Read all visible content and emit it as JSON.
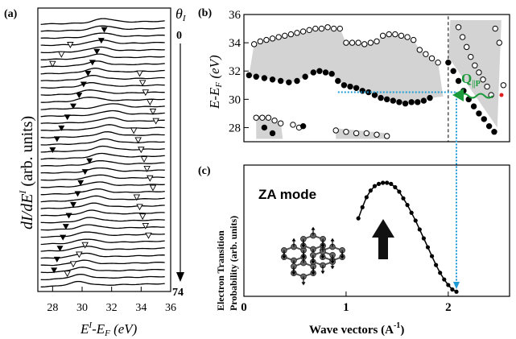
{
  "panels": {
    "a": {
      "label": "(a)",
      "ylabel_main": "dI/dE",
      "ylabel_sup": "I",
      "ylabel_rest": " (arb. units)",
      "xlabel_main": "E",
      "xlabel_sup": "I",
      "xlabel_rest": "-E",
      "xlabel_sub": "F",
      "xlabel_unit": " (eV)",
      "theta_symbol": "θ",
      "theta_sub": "I",
      "theta_start": "0",
      "theta_end": "74",
      "xticks": [
        "28",
        "30",
        "32",
        "34",
        "36"
      ]
    },
    "b": {
      "label": "(b)",
      "ylabel": "E-E",
      "ylabel_sub": "F",
      "ylabel_unit": " (eV)",
      "yticks": [
        "28",
        "30",
        "32",
        "34",
        "36"
      ],
      "q_main": "Q",
      "q_sub": "||P"
    },
    "c": {
      "label": "(c)",
      "title": "ZA mode",
      "ylabel_line1": "Electron Transition",
      "ylabel_line2": "Probability   (arb. units)",
      "xlabel": "Wave vectors (A",
      "xlabel_sup": "-1",
      "xlabel_close": ")",
      "xticks": [
        "0",
        "1",
        "2"
      ]
    }
  },
  "chart_data": [
    {
      "type": "line",
      "panel": "a",
      "description_of_axes": "stacked spectra vs energy",
      "xlim": [
        27,
        36
      ],
      "curves": 38,
      "offset_direction": "down with increasing angle",
      "filled_marker_energy": [
        31.5,
        31.3,
        31.0,
        30.7,
        30.4,
        30.1,
        29.8,
        29.4,
        29.0,
        28.6,
        28.3,
        28.0,
        30.5,
        30.2,
        29.9,
        29.7,
        29.4,
        29.1,
        28.9,
        28.7,
        28.5,
        28.3,
        28.1
      ],
      "open_marker_energy": [
        29.2,
        28.6,
        28.0,
        33.9,
        34.1,
        34.3,
        34.6,
        34.8,
        35.0,
        33.5,
        33.8,
        34.0,
        34.2,
        34.4,
        34.6,
        34.8,
        33.7,
        33.9,
        34.1,
        34.3,
        34.5,
        30.2,
        29.8,
        29.4,
        29.0
      ]
    },
    {
      "type": "scatter",
      "panel": "b",
      "xlim": [
        0,
        2.6
      ],
      "ylim": [
        27,
        36
      ],
      "open_upper": {
        "x": [
          0.1,
          0.16,
          0.22,
          0.28,
          0.34,
          0.4,
          0.46,
          0.52,
          0.58,
          0.64,
          0.7,
          0.76,
          0.82,
          0.88,
          0.94,
          1.0,
          1.06,
          1.12,
          1.18,
          1.24,
          1.3,
          1.36,
          1.42,
          1.48,
          1.54,
          1.6,
          1.66,
          1.72,
          1.78,
          1.84,
          1.9
        ],
        "y": [
          33.9,
          34.1,
          34.2,
          34.3,
          34.4,
          34.5,
          34.6,
          34.7,
          34.8,
          34.9,
          35.0,
          35.0,
          35.1,
          35.0,
          35.0,
          34.0,
          34.0,
          34.0,
          33.9,
          34.0,
          34.1,
          34.5,
          34.6,
          34.6,
          34.5,
          34.4,
          34.2,
          33.5,
          33.2,
          32.9,
          32.6
        ]
      },
      "filled_lower": {
        "x": [
          0.05,
          0.12,
          0.2,
          0.28,
          0.36,
          0.44,
          0.52,
          0.6,
          0.68,
          0.74,
          0.8,
          0.86,
          0.92,
          0.98,
          1.04,
          1.1,
          1.16,
          1.22,
          1.28,
          1.34,
          1.4,
          1.46,
          1.52,
          1.58,
          1.64,
          1.7,
          1.76,
          1.82
        ],
        "y": [
          31.7,
          31.6,
          31.5,
          31.4,
          31.3,
          31.2,
          31.3,
          31.6,
          31.9,
          32.0,
          31.9,
          31.8,
          31.3,
          31.0,
          30.9,
          30.8,
          30.6,
          30.5,
          30.3,
          30.1,
          30.0,
          29.9,
          29.8,
          29.7,
          29.8,
          29.8,
          29.9,
          30.1
        ]
      },
      "open_low": {
        "x": [
          0.12,
          0.18,
          0.24,
          0.3,
          0.36,
          0.48,
          0.54,
          0.9,
          1.0,
          1.1,
          1.2,
          1.3,
          1.4
        ],
        "y": [
          28.7,
          28.7,
          28.7,
          28.5,
          28.3,
          28.2,
          28.0,
          27.8,
          27.7,
          27.6,
          27.6,
          27.5,
          27.4
        ]
      },
      "filled_low": {
        "x": [
          0.2,
          0.28,
          0.58
        ],
        "y": [
          28.0,
          27.6,
          28.1
        ]
      },
      "right_filled": {
        "x": [
          2.0,
          2.05,
          2.1,
          2.15,
          2.2,
          2.25,
          2.3,
          2.35,
          2.4,
          2.45
        ],
        "y": [
          32.6,
          32.0,
          31.3,
          30.6,
          30.0,
          29.5,
          29.0,
          28.6,
          28.1,
          27.7
        ]
      },
      "right_open": {
        "x": [
          2.1,
          2.14,
          2.18,
          2.22,
          2.26,
          2.3,
          2.34,
          2.38,
          2.42,
          2.46,
          2.5,
          2.54
        ],
        "y": [
          35.1,
          34.4,
          33.7,
          33.0,
          32.4,
          31.9,
          31.4,
          30.9,
          30.3,
          35.0,
          34.0,
          31.0
        ]
      },
      "dashed_box": {
        "x": [
          2.0,
          2.6
        ],
        "y": [
          27,
          36
        ]
      },
      "guide_energy": 30.5
    },
    {
      "type": "line",
      "panel": "c",
      "xlim": [
        0,
        2.6
      ],
      "x": [
        1.12,
        1.16,
        1.2,
        1.24,
        1.28,
        1.32,
        1.36,
        1.4,
        1.44,
        1.48,
        1.52,
        1.56,
        1.6,
        1.64,
        1.68,
        1.72,
        1.76,
        1.8,
        1.84,
        1.88,
        1.92,
        1.96,
        2.0,
        2.04,
        2.08
      ],
      "y": [
        0.68,
        0.78,
        0.87,
        0.93,
        0.97,
        0.99,
        1.0,
        1.0,
        0.99,
        0.96,
        0.92,
        0.86,
        0.8,
        0.73,
        0.66,
        0.58,
        0.5,
        0.42,
        0.34,
        0.26,
        0.19,
        0.13,
        0.08,
        0.04,
        0.02
      ]
    }
  ]
}
